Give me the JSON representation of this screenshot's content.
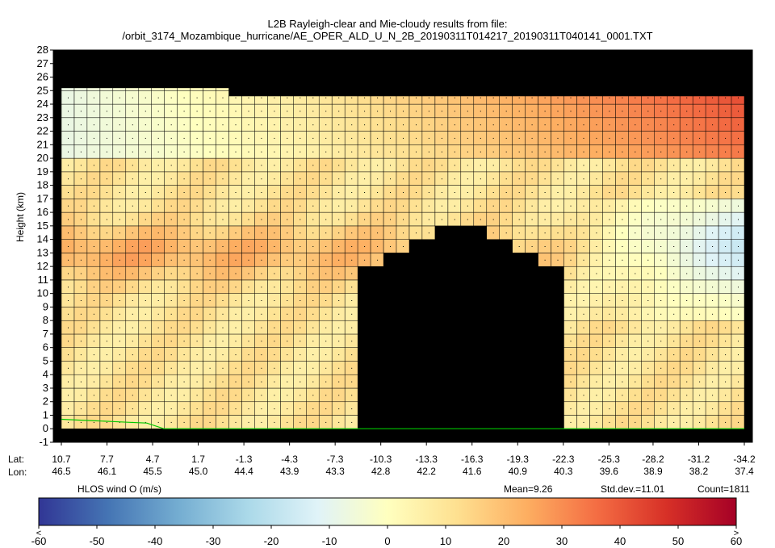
{
  "chart_data": {
    "type": "heatmap",
    "title": "L2B Rayleigh-clear and Mie-cloudy results from file:",
    "subtitle": "/orbit_3174_Mozambique_hurricane/AE_OPER_ALD_U_N_2B_20190311T014217_20190311T040141_0001.TXT",
    "ylabel": "Height (km)",
    "ylim": [
      -1,
      28
    ],
    "y_ticks": [
      "-1",
      "0",
      "1",
      "2",
      "3",
      "4",
      "5",
      "6",
      "7",
      "8",
      "9",
      "10",
      "11",
      "12",
      "13",
      "14",
      "15",
      "16",
      "17",
      "18",
      "19",
      "20",
      "21",
      "22",
      "23",
      "24",
      "25",
      "26",
      "27",
      "28"
    ],
    "x_row_labels": [
      "Lat:",
      "Lon:"
    ],
    "lat_ticks": [
      "10.7",
      "7.7",
      "4.7",
      "1.7",
      "-1.3",
      "-4.3",
      "-7.3",
      "-10.3",
      "-13.3",
      "-16.3",
      "-19.3",
      "-22.3",
      "-25.3",
      "-28.2",
      "-31.2",
      "-34.2"
    ],
    "lon_ticks": [
      "46.5",
      "46.1",
      "45.5",
      "45.0",
      "44.4",
      "43.9",
      "43.3",
      "42.8",
      "42.2",
      "41.6",
      "40.9",
      "40.3",
      "39.6",
      "38.9",
      "38.2",
      "37.4"
    ],
    "colorbar": {
      "label": "HLOS wind O (m/s)",
      "range": [
        -60,
        60
      ],
      "ticks": [
        "-60",
        "-50",
        "-40",
        "-30",
        "-20",
        "-10",
        "0",
        "10",
        "20",
        "30",
        "40",
        "50",
        "60"
      ],
      "under_marker": "<",
      "over_marker": ">"
    },
    "stats": {
      "mean": "Mean=9.26",
      "stddev": "Std.dev.=11.01",
      "count": "Count=1811"
    },
    "colors": {
      "no_data": "#000000",
      "ground_line": "#00c800",
      "scale": [
        "#313695",
        "#4575b4",
        "#74add1",
        "#abd9e9",
        "#e0f3f8",
        "#ffffbf",
        "#fee090",
        "#fdae61",
        "#f46d43",
        "#d73027",
        "#a50026"
      ]
    },
    "profiles": {
      "lat": [
        10.7,
        -34.2
      ],
      "column_count": 53,
      "wind_by_height_ms": {
        "north_0_10km": 10,
        "north_12_15km": 25,
        "north_22_23km": -8,
        "mid_24km": 28,
        "south_24km": 35,
        "south_12_16km": -18
      },
      "cloud_top_km": 15,
      "cloud_lat_range": [
        -8.5,
        -22
      ]
    }
  }
}
